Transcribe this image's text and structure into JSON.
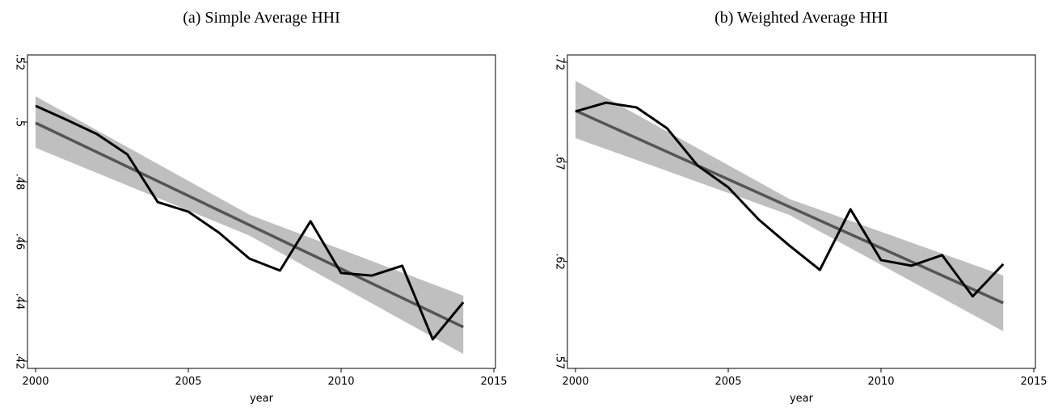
{
  "chart_data": [
    {
      "type": "line",
      "title": "(a) Simple Average HHI",
      "xlabel": "year",
      "x": [
        2000,
        2001,
        2002,
        2003,
        2004,
        2005,
        2006,
        2007,
        2008,
        2009,
        2010,
        2011,
        2012,
        2013,
        2014
      ],
      "series": [
        {
          "color": "#000000",
          "values": [
            0.5054,
            0.5008,
            0.496,
            0.4892,
            0.4732,
            0.47,
            0.463,
            0.4543,
            0.4503,
            0.4668,
            0.4495,
            0.4486,
            0.4519,
            0.4273,
            0.4397
          ]
        },
        {
          "color": "#555555",
          "x": [
            2000,
            2014
          ],
          "values": [
            0.4997,
            0.4314
          ]
        }
      ],
      "band": {
        "color": "#bfbfbf",
        "x": [
          2000,
          2007,
          2014
        ],
        "lower": [
          0.4914,
          0.462,
          0.4224
        ],
        "upper": [
          0.5086,
          0.469,
          0.4419
        ]
      },
      "xlim": [
        2000,
        2015
      ],
      "xticks": [
        2000,
        2005,
        2010,
        2015
      ],
      "ylim": [
        0.42,
        0.52
      ],
      "yticks": [
        {
          "value": 0.42,
          "label": ".42"
        },
        {
          "value": 0.44,
          "label": ".44"
        },
        {
          "value": 0.46,
          "label": ".46"
        },
        {
          "value": 0.48,
          "label": ".48"
        },
        {
          "value": 0.5,
          "label": ".5"
        },
        {
          "value": 0.52,
          "label": ".52"
        }
      ]
    },
    {
      "type": "line",
      "title": "(b) Weighted Average HHI",
      "xlabel": "year",
      "x": [
        2000,
        2001,
        2002,
        2003,
        2004,
        2005,
        2006,
        2007,
        2008,
        2009,
        2010,
        2011,
        2012,
        2013,
        2014
      ],
      "series": [
        {
          "color": "#000000",
          "values": [
            0.6953,
            0.6997,
            0.6973,
            0.6868,
            0.6681,
            0.6572,
            0.641,
            0.628,
            0.6158,
            0.6462,
            0.6207,
            0.6179,
            0.6232,
            0.6025,
            0.6187
          ]
        },
        {
          "color": "#555555",
          "x": [
            2000,
            2014
          ],
          "values": [
            0.6957,
            0.5992
          ]
        }
      ],
      "band": {
        "color": "#bfbfbf",
        "x": [
          2000,
          2007,
          2014
        ],
        "lower": [
          0.6819,
          0.6434,
          0.585
        ],
        "upper": [
          0.7107,
          0.6514,
          0.613
        ]
      },
      "xlim": [
        2000,
        2015
      ],
      "xticks": [
        2000,
        2005,
        2010,
        2015
      ],
      "ylim": [
        0.57,
        0.72
      ],
      "yticks": [
        {
          "value": 0.57,
          "label": ".57"
        },
        {
          "value": 0.62,
          "label": ".62"
        },
        {
          "value": 0.67,
          "label": ".67"
        },
        {
          "value": 0.72,
          "label": ".72"
        }
      ]
    }
  ]
}
